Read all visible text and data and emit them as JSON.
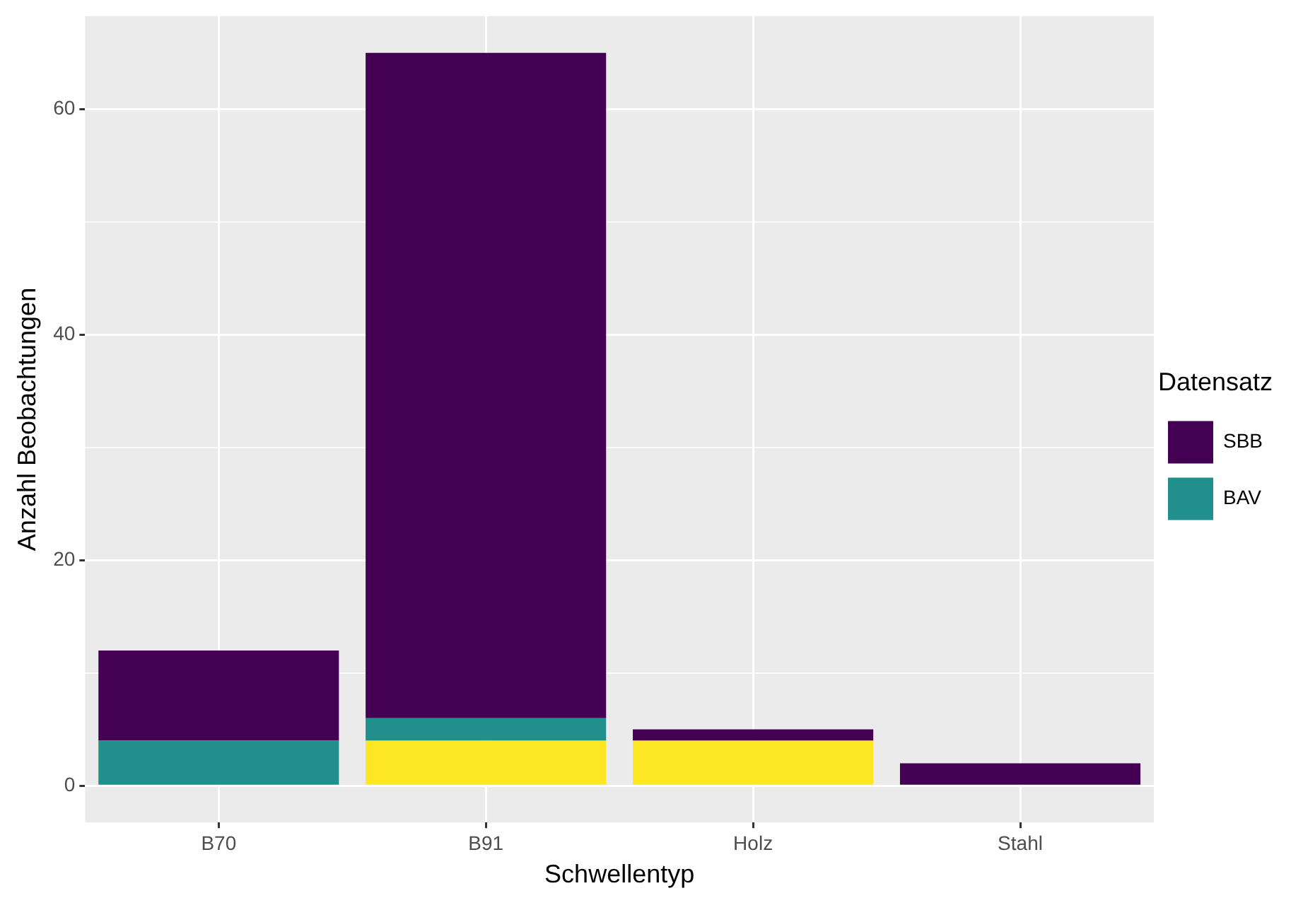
{
  "chart_data": {
    "type": "bar",
    "stacked": true,
    "xlabel": "Schwellentyp",
    "ylabel": "Anzahl Beobachtungen",
    "legend_title": "Datensatz",
    "legend": "right",
    "categories": [
      "B70",
      "B91",
      "Holz",
      "Stahl"
    ],
    "series": [
      {
        "color": "#fde725",
        "values": [
          0,
          4,
          4,
          0
        ]
      },
      {
        "name": "BAV",
        "color": "#21908c",
        "values": [
          4,
          2,
          0,
          0
        ]
      },
      {
        "name": "SBB",
        "color": "#440154",
        "values": [
          8,
          59,
          1,
          2
        ]
      }
    ],
    "ylim": [
      -3.25,
      68.25
    ],
    "yticks": [
      0,
      {
        "value": 10,
        "label": null
      },
      20,
      {
        "value": 30,
        "label": null
      },
      40,
      {
        "value": 50,
        "label": null
      },
      60
    ],
    "grid": true
  }
}
